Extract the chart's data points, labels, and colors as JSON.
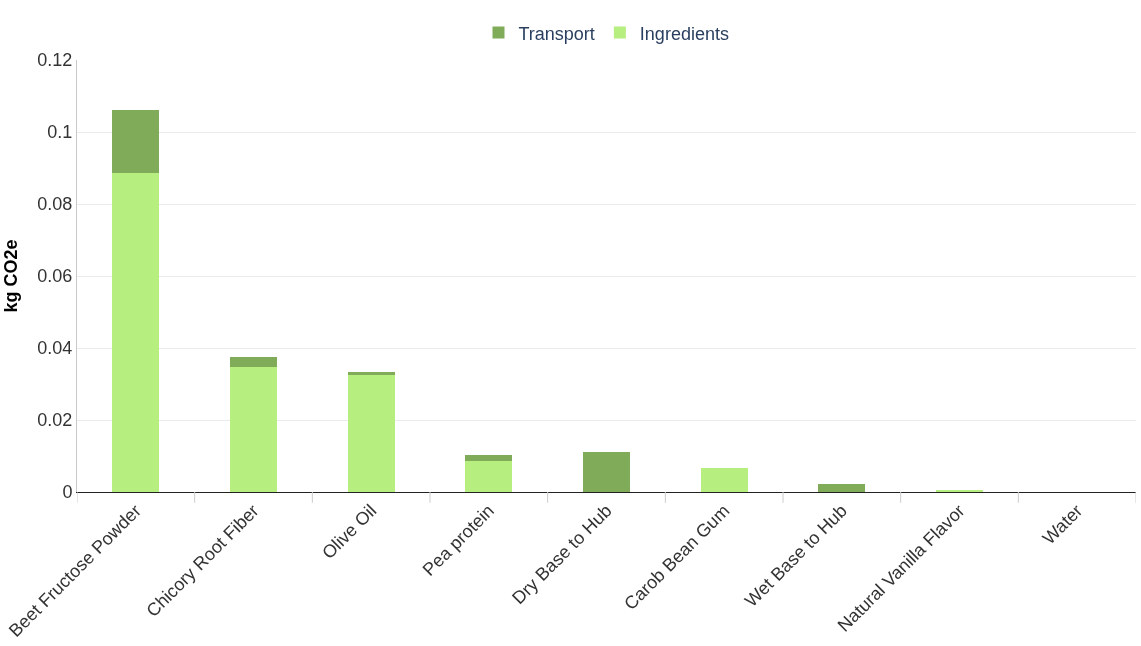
{
  "chart_data": {
    "type": "bar",
    "stacked": true,
    "ylabel": "kg CO2e",
    "categories": [
      "Beet Fructose Powder",
      "Chicory Root Fiber",
      "Olive Oil",
      "Pea protein",
      "Dry Base to Hub",
      "Carob Bean Gum",
      "Wet Base to Hub",
      "Natural Vanilla Flavor",
      "Water"
    ],
    "series": [
      {
        "name": "Ingredients",
        "color": "#b6ee80",
        "values": [
          0.0887,
          0.0346,
          0.0326,
          0.0086,
          0,
          0.0066,
          0,
          0.0003,
          0
        ]
      },
      {
        "name": "Transport",
        "color": "#80ab58",
        "values": [
          0.0175,
          0.003,
          0.0007,
          0.0016,
          0.0112,
          0,
          0.0023,
          0,
          0
        ]
      }
    ],
    "ylim": [
      0,
      0.12
    ],
    "yticks": [
      0,
      0.02,
      0.04,
      0.06,
      0.08,
      {
        "value": 0.1,
        "label": "0.1"
      },
      0.12
    ],
    "grid": "y",
    "legend": "top"
  }
}
